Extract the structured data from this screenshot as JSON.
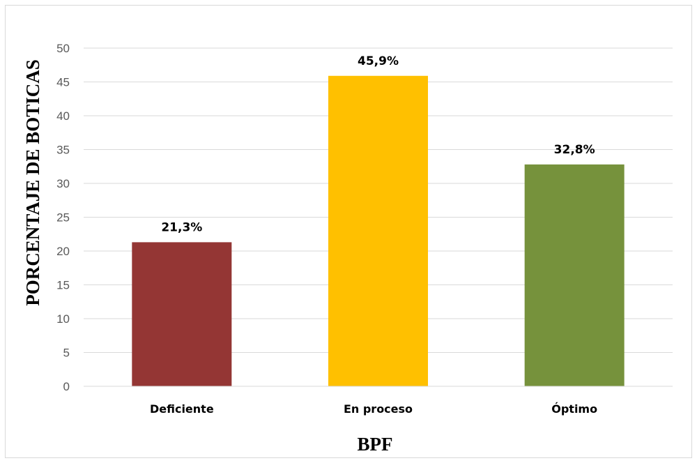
{
  "chart_data": {
    "type": "bar",
    "title": "",
    "xlabel": "BPF",
    "ylabel": "PORCENTAJE DE BOTICAS",
    "categories": [
      "Deficiente",
      "En proceso",
      "Óptimo"
    ],
    "values": [
      21.3,
      45.9,
      32.8
    ],
    "data_labels": [
      "21,3%",
      "45,9%",
      "32,8%"
    ],
    "colors": [
      "#943634",
      "#ffc000",
      "#76923c"
    ],
    "ylim": [
      0,
      50
    ],
    "yticks": [
      "0",
      "5",
      "10",
      "15",
      "20",
      "25",
      "30",
      "35",
      "40",
      "45",
      "50"
    ],
    "grid": true,
    "legend": "none"
  }
}
